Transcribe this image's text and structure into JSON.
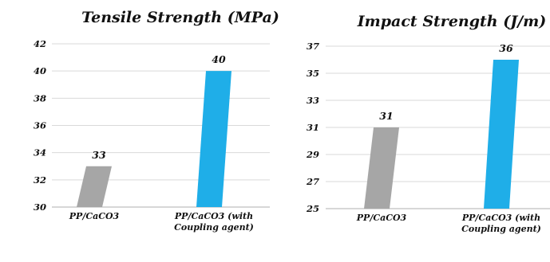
{
  "chart_data": [
    {
      "type": "bar",
      "title": "Tensile Strength (MPa)",
      "categories": [
        "PP/CaCO3",
        "PP/CaCO3 (with Coupling agent)"
      ],
      "category_lines": [
        [
          "PP/CaCO3"
        ],
        [
          "PP/CaCO3 (with",
          "Coupling agent)"
        ]
      ],
      "values": [
        33,
        40
      ],
      "value_labels": [
        "33",
        "40"
      ],
      "ylim": [
        30,
        42
      ],
      "yticks": [
        30,
        32,
        34,
        36,
        38,
        40,
        42
      ],
      "ytick_labels": [
        "30",
        "32",
        "34",
        "36",
        "38",
        "40",
        "42"
      ],
      "grid": true,
      "xlabel": "",
      "ylabel": ""
    },
    {
      "type": "bar",
      "title": "Impact Strength (J/m)",
      "categories": [
        "PP/CaCO3",
        "PP/CaCO3 (with Coupling agent)"
      ],
      "category_lines": [
        [
          "PP/CaCO3"
        ],
        [
          "PP/CaCO3 (with",
          "Coupling agent)"
        ]
      ],
      "values": [
        31,
        36
      ],
      "value_labels": [
        "31",
        "36"
      ],
      "ylim": [
        25,
        37
      ],
      "yticks": [
        25,
        27,
        29,
        31,
        33,
        35,
        37
      ],
      "ytick_labels": [
        "25",
        "27",
        "29",
        "31",
        "33",
        "35",
        "37"
      ],
      "grid": true,
      "xlabel": "",
      "ylabel": ""
    }
  ],
  "colors": {
    "bar_plain": "#a6a6a6",
    "bar_coupling": "#1faee8",
    "grid": "#d9d9d9",
    "axis": "#bfbfbf"
  }
}
